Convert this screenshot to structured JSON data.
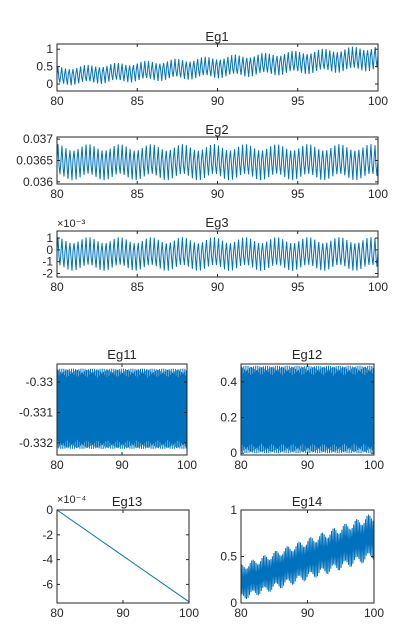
{
  "chart_data": [
    {
      "type": "line",
      "title": "Eg1",
      "xlim": [
        80,
        100
      ],
      "xticks": [
        80,
        85,
        90,
        95,
        100
      ],
      "ylim": [
        -0.2,
        1.15
      ],
      "yticks": [
        0,
        0.5,
        1
      ],
      "yticklabels": [
        "0",
        "0.5",
        "1"
      ],
      "color": "#0072BD",
      "signal": {
        "kind": "oscillation",
        "base_start": 0.22,
        "base_end": 0.75,
        "amp_start": 0.28,
        "amp_end": 0.38,
        "cycles": 85
      }
    },
    {
      "type": "line",
      "title": "Eg2",
      "xlim": [
        80,
        100
      ],
      "xticks": [
        80,
        85,
        90,
        95,
        100
      ],
      "ylim": [
        0.03595,
        0.03705
      ],
      "yticks": [
        0.036,
        0.0365,
        0.037
      ],
      "yticklabels": [
        "0.036",
        "0.0365",
        "0.037"
      ],
      "color": "#0072BD",
      "signal": {
        "kind": "oscillation",
        "base_start": 0.03646,
        "base_end": 0.03646,
        "amp_start": 0.00043,
        "amp_end": 0.00043,
        "cycles": 80
      }
    },
    {
      "type": "line",
      "title": "Eg3",
      "xlim": [
        80,
        100
      ],
      "xticks": [
        80,
        85,
        90,
        95,
        100
      ],
      "ylim": [
        -2.3,
        1.6
      ],
      "yticks": [
        -2,
        -1,
        0,
        1
      ],
      "yticklabels": [
        "-2",
        "-1",
        "0",
        "1"
      ],
      "exponent": "×10⁻³",
      "color": "#0072BD",
      "signal": {
        "kind": "oscillation",
        "base_start": -0.35,
        "base_end": -0.35,
        "amp_start": 1.45,
        "amp_end": 1.45,
        "cycles": 80
      }
    },
    {
      "type": "line",
      "title": "Eg11",
      "xlim": [
        80,
        100
      ],
      "xticks": [
        80,
        90,
        100
      ],
      "ylim": [
        -0.3324,
        -0.3294
      ],
      "yticks": [
        -0.33,
        -0.331,
        -0.332
      ],
      "yticklabels": [
        "-0.33",
        "-0.331",
        "-0.332"
      ],
      "color": "#0072BD",
      "signal": {
        "kind": "band",
        "low": -0.3322,
        "high": -0.32955,
        "cycles": 95
      }
    },
    {
      "type": "line",
      "title": "Eg12",
      "xlim": [
        80,
        100
      ],
      "xticks": [
        80,
        90,
        100
      ],
      "ylim": [
        -0.01,
        0.5
      ],
      "yticks": [
        0,
        0.2,
        0.4
      ],
      "yticklabels": [
        "0",
        "0.2",
        "0.4"
      ],
      "color": "#0072BD",
      "signal": {
        "kind": "band",
        "low": 0.0,
        "high": 0.49,
        "cycles": 95
      }
    },
    {
      "type": "line",
      "title": "Eg13",
      "xlim": [
        80,
        100
      ],
      "xticks": [
        80,
        90,
        100
      ],
      "ylim": [
        -7.5,
        0
      ],
      "yticks": [
        0,
        -2,
        -4,
        -6
      ],
      "yticklabels": [
        "0",
        "-2",
        "-4",
        "-6"
      ],
      "exponent": "×10⁻⁴",
      "color": "#0072BD",
      "signal": {
        "kind": "linear",
        "start": 0,
        "end": -7.4
      }
    },
    {
      "type": "line",
      "title": "Eg14",
      "xlim": [
        80,
        100
      ],
      "xticks": [
        80,
        90,
        100
      ],
      "ylim": [
        0,
        1
      ],
      "yticks": [
        0,
        0.5,
        1
      ],
      "yticklabels": [
        "0",
        "0.5",
        "1"
      ],
      "color": "#0072BD",
      "signal": {
        "kind": "oscillation",
        "base_start": 0.22,
        "base_end": 0.72,
        "amp_start": 0.2,
        "amp_end": 0.26,
        "cycles": 90
      }
    }
  ]
}
